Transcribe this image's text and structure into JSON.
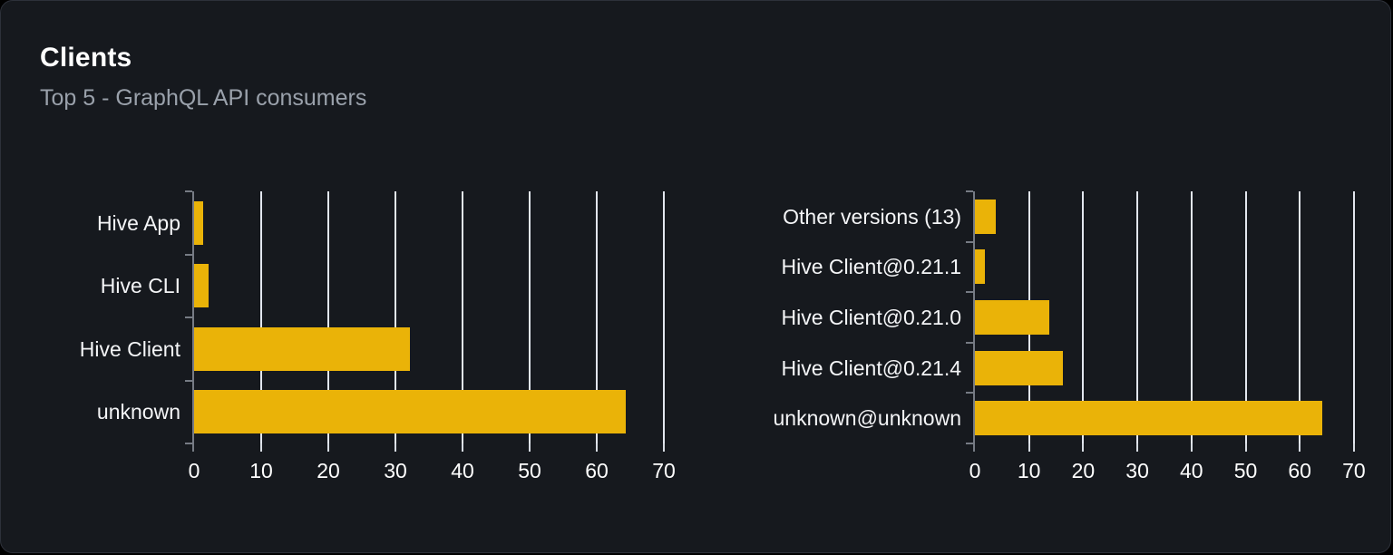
{
  "card": {
    "title": "Clients",
    "subtitle": "Top 5 - GraphQL API consumers"
  },
  "colors": {
    "page_bg": "#000000",
    "card_bg": "#16191e",
    "card_border": "#2d313a",
    "bar": "#eab308",
    "gridline": "#e2e6ee",
    "axis": "#767b84",
    "x_tick": "#d7dce3",
    "category_label": "#f4f5f7",
    "tick_label": "#ffffff",
    "subtitle_text": "#9aa1ab"
  },
  "chart_data": [
    {
      "type": "bar",
      "orientation": "horizontal",
      "name": "clients-by-name",
      "categories": [
        "Hive App",
        "Hive CLI",
        "Hive Client",
        "unknown"
      ],
      "values": [
        1.4,
        2.1,
        32.1,
        64.3
      ],
      "x_ticks": [
        0,
        10,
        20,
        30,
        40,
        50,
        60,
        70
      ],
      "xlim": [
        0,
        70
      ],
      "grid": true,
      "legend": false
    },
    {
      "type": "bar",
      "orientation": "horizontal",
      "name": "clients-by-version",
      "categories": [
        "Other versions (13)",
        "Hive Client@0.21.1",
        "Hive Client@0.21.0",
        "Hive Client@0.21.4",
        "unknown@unknown"
      ],
      "values": [
        3.9,
        1.8,
        13.7,
        16.3,
        64.2
      ],
      "x_ticks": [
        0,
        10,
        20,
        30,
        40,
        50,
        60,
        70
      ],
      "xlim": [
        0,
        70
      ],
      "grid": true,
      "legend": false
    }
  ]
}
